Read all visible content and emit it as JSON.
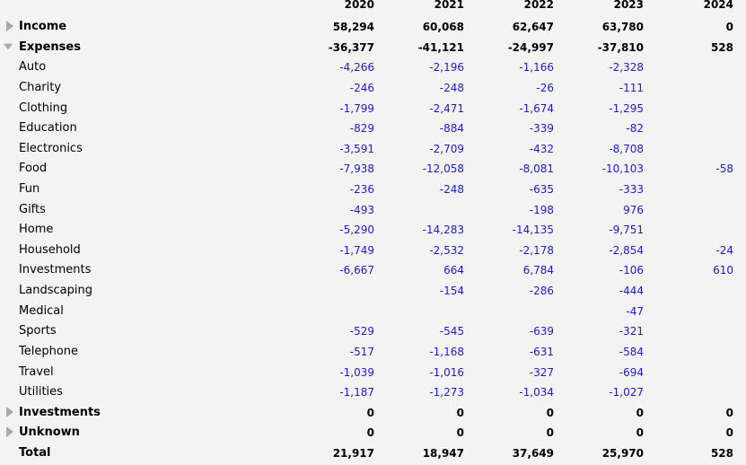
{
  "years": [
    "2020",
    "2021",
    "2022",
    "2023",
    "2024"
  ],
  "rows": [
    {
      "label": "Income",
      "bold": true,
      "toggle": "collapsed",
      "values": [
        "58,294",
        "60,068",
        "62,647",
        "63,780",
        "0"
      ]
    },
    {
      "label": "Expenses",
      "bold": true,
      "toggle": "expanded",
      "values": [
        "-36,377",
        "-41,121",
        "-24,997",
        "-37,810",
        "528"
      ]
    },
    {
      "label": "Auto",
      "bold": false,
      "toggle": "none",
      "values": [
        "-4,266",
        "-2,196",
        "-1,166",
        "-2,328",
        ""
      ]
    },
    {
      "label": "Charity",
      "bold": false,
      "toggle": "none",
      "values": [
        "-246",
        "-248",
        "-26",
        "-111",
        ""
      ]
    },
    {
      "label": "Clothing",
      "bold": false,
      "toggle": "none",
      "values": [
        "-1,799",
        "-2,471",
        "-1,674",
        "-1,295",
        ""
      ]
    },
    {
      "label": "Education",
      "bold": false,
      "toggle": "none",
      "values": [
        "-829",
        "-884",
        "-339",
        "-82",
        ""
      ]
    },
    {
      "label": "Electronics",
      "bold": false,
      "toggle": "none",
      "values": [
        "-3,591",
        "-2,709",
        "-432",
        "-8,708",
        ""
      ]
    },
    {
      "label": "Food",
      "bold": false,
      "toggle": "none",
      "values": [
        "-7,938",
        "-12,058",
        "-8,081",
        "-10,103",
        "-58"
      ]
    },
    {
      "label": "Fun",
      "bold": false,
      "toggle": "none",
      "values": [
        "-236",
        "-248",
        "-635",
        "-333",
        ""
      ]
    },
    {
      "label": "Gifts",
      "bold": false,
      "toggle": "none",
      "values": [
        "-493",
        "",
        "-198",
        "976",
        ""
      ]
    },
    {
      "label": "Home",
      "bold": false,
      "toggle": "none",
      "values": [
        "-5,290",
        "-14,283",
        "-14,135",
        "-9,751",
        ""
      ]
    },
    {
      "label": "Household",
      "bold": false,
      "toggle": "none",
      "values": [
        "-1,749",
        "-2,532",
        "-2,178",
        "-2,854",
        "-24"
      ]
    },
    {
      "label": "Investments",
      "bold": false,
      "toggle": "none",
      "values": [
        "-6,667",
        "664",
        "6,784",
        "-106",
        "610"
      ]
    },
    {
      "label": "Landscaping",
      "bold": false,
      "toggle": "none",
      "values": [
        "",
        "-154",
        "-286",
        "-444",
        ""
      ]
    },
    {
      "label": "Medical",
      "bold": false,
      "toggle": "none",
      "values": [
        "",
        "",
        "",
        "-47",
        ""
      ]
    },
    {
      "label": "Sports",
      "bold": false,
      "toggle": "none",
      "values": [
        "-529",
        "-545",
        "-639",
        "-321",
        ""
      ]
    },
    {
      "label": "Telephone",
      "bold": false,
      "toggle": "none",
      "values": [
        "-517",
        "-1,168",
        "-631",
        "-584",
        ""
      ]
    },
    {
      "label": "Travel",
      "bold": false,
      "toggle": "none",
      "values": [
        "-1,039",
        "-1,016",
        "-327",
        "-694",
        ""
      ]
    },
    {
      "label": "Utilities",
      "bold": false,
      "toggle": "none",
      "values": [
        "-1,187",
        "-1,273",
        "-1,034",
        "-1,027",
        ""
      ]
    },
    {
      "label": "Investments",
      "bold": true,
      "toggle": "collapsed",
      "values": [
        "0",
        "0",
        "0",
        "0",
        "0"
      ]
    },
    {
      "label": "Unknown",
      "bold": true,
      "toggle": "collapsed",
      "values": [
        "0",
        "0",
        "0",
        "0",
        "0"
      ]
    },
    {
      "label": "Total",
      "bold": true,
      "toggle": "none",
      "values": [
        "21,917",
        "18,947",
        "37,649",
        "25,970",
        "528"
      ]
    }
  ],
  "colors": {
    "category_value": "#1a1ad6",
    "group_value": "#000000",
    "toggle": "#a8a8a8",
    "background": "#f3f3f3"
  }
}
